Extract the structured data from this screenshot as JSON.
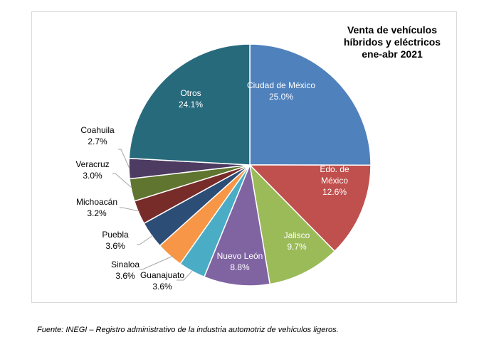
{
  "chart_data": {
    "type": "pie",
    "title_lines": [
      "Venta de vehículos",
      "híbridos y eléctricos",
      "ene-abr 2021"
    ],
    "slices": [
      {
        "label": "Ciudad de México",
        "value": 25.0,
        "value_label": "25.0%",
        "color": "#4f81bd"
      },
      {
        "label": "Edo. de México",
        "value": 12.6,
        "value_label": "12.6%",
        "color": "#c0504d"
      },
      {
        "label": "Jalisco",
        "value": 9.7,
        "value_label": "9.7%",
        "color": "#9bbb59"
      },
      {
        "label": "Nuevo León",
        "value": 8.8,
        "value_label": "8.8%",
        "color": "#8064a2"
      },
      {
        "label": "Guanajuato",
        "value": 3.6,
        "value_label": "3.6%",
        "color": "#4bacc6"
      },
      {
        "label": "Sinaloa",
        "value": 3.6,
        "value_label": "3.6%",
        "color": "#f79646"
      },
      {
        "label": "Puebla",
        "value": 3.6,
        "value_label": "3.6%",
        "color": "#2c4d75"
      },
      {
        "label": "Michoacán",
        "value": 3.2,
        "value_label": "3.2%",
        "color": "#772c2a"
      },
      {
        "label": "Veracruz",
        "value": 3.0,
        "value_label": "3.0%",
        "color": "#5f7530"
      },
      {
        "label": "Coahuila",
        "value": 2.7,
        "value_label": "2.7%",
        "color": "#4d3b62"
      },
      {
        "label": "Otros",
        "value": 24.1,
        "value_label": "24.1%",
        "color": "#276a7c"
      }
    ]
  },
  "source_note": "Fuente: INEGI – Registro administrativo de la industria automotriz de vehículos ligeros."
}
